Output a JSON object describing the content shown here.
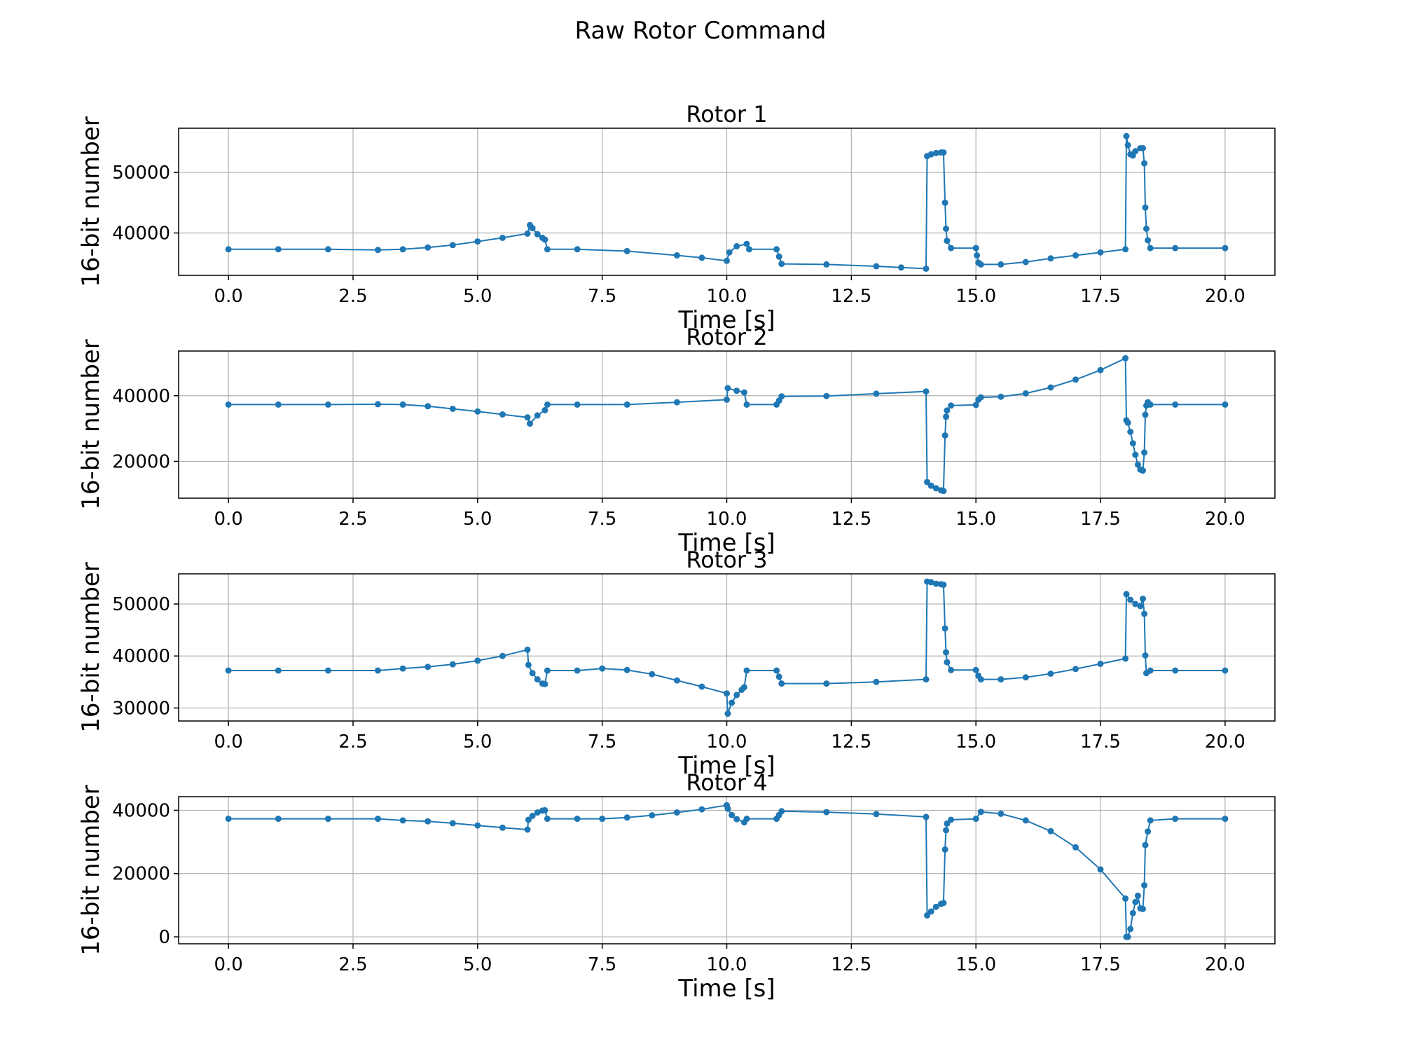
{
  "figure_title": "Raw Rotor Command",
  "chart_data": [
    {
      "type": "line",
      "title": "Rotor 1",
      "xlabel": "Time [s]",
      "ylabel": "16-bit number",
      "xlim": [
        -1.0,
        21.0
      ],
      "ylim": [
        33000,
        57300
      ],
      "xticks": [
        0.0,
        2.5,
        5.0,
        7.5,
        10.0,
        12.5,
        15.0,
        17.5,
        20.0
      ],
      "xtick_labels": [
        "0.0",
        "2.5",
        "5.0",
        "7.5",
        "10.0",
        "12.5",
        "15.0",
        "17.5",
        "20.0"
      ],
      "yticks": [
        40000,
        50000
      ],
      "ytick_labels": [
        "40000",
        "50000"
      ],
      "grid": true,
      "color": "#1f77b4",
      "series": [
        {
          "x": [
            0.0,
            1.0,
            2.0,
            3.0,
            3.5,
            4.0,
            4.5,
            5.0,
            5.5,
            6.0,
            6.05,
            6.1,
            6.2,
            6.3,
            6.35,
            6.4,
            7.0,
            8.0,
            9.0,
            9.5,
            10.0,
            10.05,
            10.2,
            10.4,
            10.45,
            11.0,
            11.05,
            11.1,
            12.0,
            13.0,
            13.5,
            14.0,
            14.02,
            14.1,
            14.2,
            14.3,
            14.35,
            14.38,
            14.4,
            14.42,
            14.5,
            15.0,
            15.02,
            15.05,
            15.1,
            15.5,
            16.0,
            16.5,
            17.0,
            17.5,
            18.0,
            18.02,
            18.05,
            18.1,
            18.15,
            18.2,
            18.3,
            18.35,
            18.38,
            18.4,
            18.42,
            18.45,
            18.5,
            19.0,
            20.0
          ],
          "y": [
            37300,
            37300,
            37300,
            37200,
            37300,
            37600,
            38000,
            38600,
            39200,
            39900,
            41300,
            40800,
            39800,
            39200,
            38900,
            37300,
            37300,
            37000,
            36300,
            35900,
            35400,
            36800,
            37800,
            38200,
            37300,
            37300,
            36100,
            34900,
            34800,
            34500,
            34300,
            34100,
            52700,
            53000,
            53200,
            53300,
            53300,
            45000,
            40700,
            38700,
            37500,
            37500,
            36300,
            35100,
            34800,
            34800,
            35200,
            35800,
            36300,
            36800,
            37300,
            56000,
            54500,
            53000,
            52800,
            53500,
            54000,
            54000,
            51500,
            44200,
            40700,
            38800,
            37500,
            37500,
            37500
          ]
        }
      ]
    },
    {
      "type": "line",
      "title": "Rotor 2",
      "xlabel": "Time [s]",
      "ylabel": "16-bit number",
      "xlim": [
        -1.0,
        21.0
      ],
      "ylim": [
        8800,
        53600
      ],
      "xticks": [
        0.0,
        2.5,
        5.0,
        7.5,
        10.0,
        12.5,
        15.0,
        17.5,
        20.0
      ],
      "xtick_labels": [
        "0.0",
        "2.5",
        "5.0",
        "7.5",
        "10.0",
        "12.5",
        "15.0",
        "17.5",
        "20.0"
      ],
      "yticks": [
        20000,
        40000
      ],
      "ytick_labels": [
        "20000",
        "40000"
      ],
      "grid": true,
      "color": "#1f77b4",
      "series": [
        {
          "x": [
            0.0,
            1.0,
            2.0,
            3.0,
            3.5,
            4.0,
            4.5,
            5.0,
            5.5,
            6.0,
            6.05,
            6.2,
            6.35,
            6.4,
            7.0,
            8.0,
            9.0,
            10.0,
            10.02,
            10.2,
            10.35,
            10.4,
            11.0,
            11.05,
            11.1,
            12.0,
            13.0,
            14.0,
            14.02,
            14.1,
            14.2,
            14.3,
            14.35,
            14.38,
            14.4,
            14.42,
            14.5,
            15.0,
            15.05,
            15.1,
            15.5,
            16.0,
            16.5,
            17.0,
            17.5,
            18.0,
            18.02,
            18.05,
            18.1,
            18.15,
            18.2,
            18.25,
            18.3,
            18.35,
            18.38,
            18.4,
            18.42,
            18.45,
            18.5,
            19.0,
            20.0
          ],
          "y": [
            37300,
            37300,
            37300,
            37400,
            37300,
            36800,
            36000,
            35200,
            34300,
            33400,
            31500,
            34000,
            35600,
            37300,
            37300,
            37300,
            38000,
            38800,
            42300,
            41500,
            41000,
            37300,
            37300,
            38500,
            39800,
            39900,
            40600,
            41300,
            13700,
            12600,
            11800,
            11200,
            11000,
            27900,
            33600,
            35500,
            37000,
            37200,
            38800,
            39500,
            39700,
            40700,
            42500,
            44900,
            47800,
            51400,
            32500,
            31800,
            29000,
            25500,
            22000,
            19000,
            17500,
            17200,
            22700,
            34200,
            37000,
            38000,
            37300,
            37300,
            37300
          ]
        }
      ]
    },
    {
      "type": "line",
      "title": "Rotor 3",
      "xlabel": "Time [s]",
      "ylabel": "16-bit number",
      "xlim": [
        -1.0,
        21.0
      ],
      "ylim": [
        27500,
        55800
      ],
      "xticks": [
        0.0,
        2.5,
        5.0,
        7.5,
        10.0,
        12.5,
        15.0,
        17.5,
        20.0
      ],
      "xtick_labels": [
        "0.0",
        "2.5",
        "5.0",
        "7.5",
        "10.0",
        "12.5",
        "15.0",
        "17.5",
        "20.0"
      ],
      "yticks": [
        30000,
        40000,
        50000
      ],
      "ytick_labels": [
        "30000",
        "40000",
        "50000"
      ],
      "grid": true,
      "color": "#1f77b4",
      "series": [
        {
          "x": [
            0.0,
            1.0,
            2.0,
            3.0,
            3.5,
            4.0,
            4.5,
            5.0,
            5.5,
            6.0,
            6.02,
            6.1,
            6.2,
            6.3,
            6.35,
            6.4,
            7.0,
            7.5,
            8.0,
            8.5,
            9.0,
            9.5,
            10.0,
            10.02,
            10.1,
            10.2,
            10.3,
            10.35,
            10.4,
            11.0,
            11.05,
            11.1,
            12.0,
            13.0,
            14.0,
            14.02,
            14.1,
            14.2,
            14.3,
            14.35,
            14.38,
            14.4,
            14.42,
            14.5,
            15.0,
            15.05,
            15.1,
            15.5,
            16.0,
            16.5,
            17.0,
            17.5,
            18.0,
            18.02,
            18.1,
            18.2,
            18.3,
            18.35,
            18.38,
            18.4,
            18.42,
            18.5,
            19.0,
            20.0
          ],
          "y": [
            37200,
            37200,
            37200,
            37200,
            37600,
            37900,
            38400,
            39100,
            40000,
            41200,
            38300,
            36700,
            35500,
            34700,
            34600,
            37200,
            37200,
            37600,
            37300,
            36500,
            35300,
            34100,
            32800,
            28900,
            31000,
            32500,
            33500,
            34000,
            37200,
            37200,
            36000,
            34700,
            34700,
            35000,
            35500,
            54300,
            54200,
            53900,
            53800,
            53700,
            45300,
            40700,
            38800,
            37300,
            37300,
            36200,
            35500,
            35500,
            35900,
            36600,
            37500,
            38500,
            39500,
            51900,
            50800,
            50000,
            49600,
            51000,
            48100,
            40100,
            36700,
            37200,
            37200,
            37200
          ]
        }
      ]
    },
    {
      "type": "line",
      "title": "Rotor 4",
      "xlabel": "Time [s]",
      "ylabel": "16-bit number",
      "xlim": [
        -1.0,
        21.0
      ],
      "ylim": [
        -2200,
        44300
      ],
      "xticks": [
        0.0,
        2.5,
        5.0,
        7.5,
        10.0,
        12.5,
        15.0,
        17.5,
        20.0
      ],
      "xtick_labels": [
        "0.0",
        "2.5",
        "5.0",
        "7.5",
        "10.0",
        "12.5",
        "15.0",
        "17.5",
        "20.0"
      ],
      "yticks": [
        0,
        20000,
        40000
      ],
      "ytick_labels": [
        "0",
        "20000",
        "40000"
      ],
      "grid": true,
      "color": "#1f77b4",
      "series": [
        {
          "x": [
            0.0,
            1.0,
            2.0,
            3.0,
            3.5,
            4.0,
            4.5,
            5.0,
            5.5,
            6.0,
            6.02,
            6.1,
            6.2,
            6.3,
            6.35,
            6.4,
            7.0,
            7.5,
            8.0,
            8.5,
            9.0,
            9.5,
            10.0,
            10.02,
            10.1,
            10.2,
            10.35,
            10.4,
            11.0,
            11.05,
            11.1,
            12.0,
            13.0,
            14.0,
            14.02,
            14.1,
            14.2,
            14.3,
            14.35,
            14.38,
            14.4,
            14.42,
            14.5,
            15.0,
            15.1,
            15.5,
            16.0,
            16.5,
            17.0,
            17.5,
            18.0,
            18.02,
            18.05,
            18.1,
            18.15,
            18.2,
            18.25,
            18.3,
            18.35,
            18.38,
            18.4,
            18.45,
            18.5,
            19.0,
            20.0
          ],
          "y": [
            37300,
            37300,
            37300,
            37300,
            36800,
            36500,
            35900,
            35200,
            34500,
            33900,
            37000,
            38200,
            39300,
            39900,
            40000,
            37300,
            37300,
            37300,
            37700,
            38400,
            39300,
            40300,
            41600,
            40500,
            38500,
            37200,
            36200,
            37300,
            37300,
            38500,
            39700,
            39400,
            38800,
            37900,
            6800,
            8000,
            9500,
            10400,
            10700,
            27600,
            33700,
            35800,
            37000,
            37300,
            39500,
            38900,
            36800,
            33400,
            28300,
            21300,
            12100,
            0,
            0,
            2500,
            7500,
            11000,
            13000,
            9000,
            8800,
            16300,
            29000,
            33300,
            36800,
            37300,
            37300
          ]
        }
      ]
    }
  ]
}
